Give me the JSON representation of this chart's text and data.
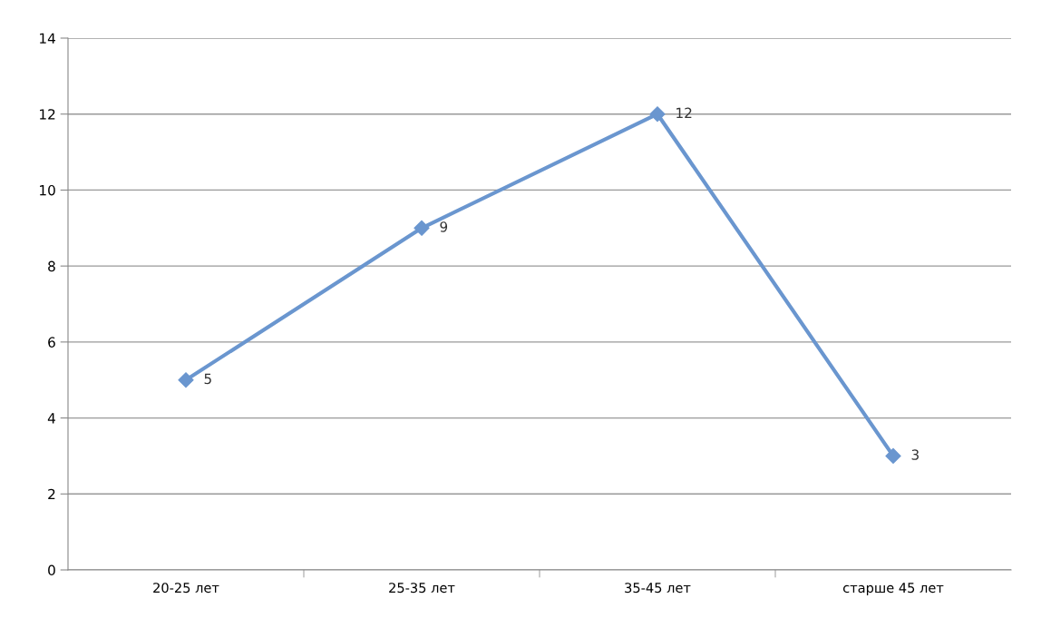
{
  "chart_data": {
    "type": "line",
    "categories": [
      "20-25 лет",
      "25-35 лет",
      "35-45 лет",
      "старше 45 лет"
    ],
    "values": [
      5,
      9,
      12,
      3
    ],
    "color": "#6a96cf",
    "marker": "diamond",
    "ylim": [
      0,
      14
    ],
    "yticks": [
      0,
      2,
      4,
      6,
      8,
      10,
      12,
      14
    ],
    "grid": "y",
    "data_labels": true
  }
}
